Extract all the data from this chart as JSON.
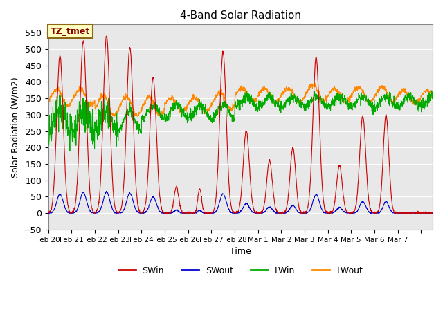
{
  "title": "4-Band Solar Radiation",
  "xlabel": "Time",
  "ylabel": "Solar Radiation (W/m2)",
  "ylim": [
    -50,
    575
  ],
  "yticks": [
    -50,
    0,
    50,
    100,
    150,
    200,
    250,
    300,
    350,
    400,
    450,
    500,
    550
  ],
  "tick_days": [
    0,
    1,
    2,
    3,
    4,
    5,
    6,
    7,
    8,
    9,
    10,
    11,
    12,
    13,
    14,
    15,
    16
  ],
  "tick_labels": [
    "Feb 20",
    "Feb 21",
    "Feb 22",
    "Feb 23",
    "Feb 24",
    "Feb 25",
    "Feb 26",
    "Feb 27",
    "Feb 28",
    "Mar 1",
    "Mar 2",
    "Mar 3",
    "Mar 4",
    "Mar 5",
    "Mar 6",
    "Mar 7",
    ""
  ],
  "annotation_text": "TZ_tmet",
  "annotation_color": "#8B0000",
  "annotation_bg": "#FFFFC0",
  "annotation_border": "#8B6914",
  "colors": {
    "SWin": "#CC0000",
    "SWout": "#0000CC",
    "LWin": "#00AA00",
    "LWout": "#FF8800"
  },
  "bg_color": "#E8E8E8",
  "num_points": 1680,
  "xlim": [
    0,
    16.5
  ],
  "day_peaks_SWin": [
    480,
    525,
    540,
    505,
    415,
    80,
    75,
    490,
    250,
    160,
    200,
    475,
    145,
    295,
    300,
    0
  ],
  "day_widths_SWin": [
    0.14,
    0.14,
    0.14,
    0.14,
    0.14,
    0.1,
    0.08,
    0.14,
    0.13,
    0.12,
    0.12,
    0.14,
    0.12,
    0.13,
    0.12,
    0.12
  ]
}
